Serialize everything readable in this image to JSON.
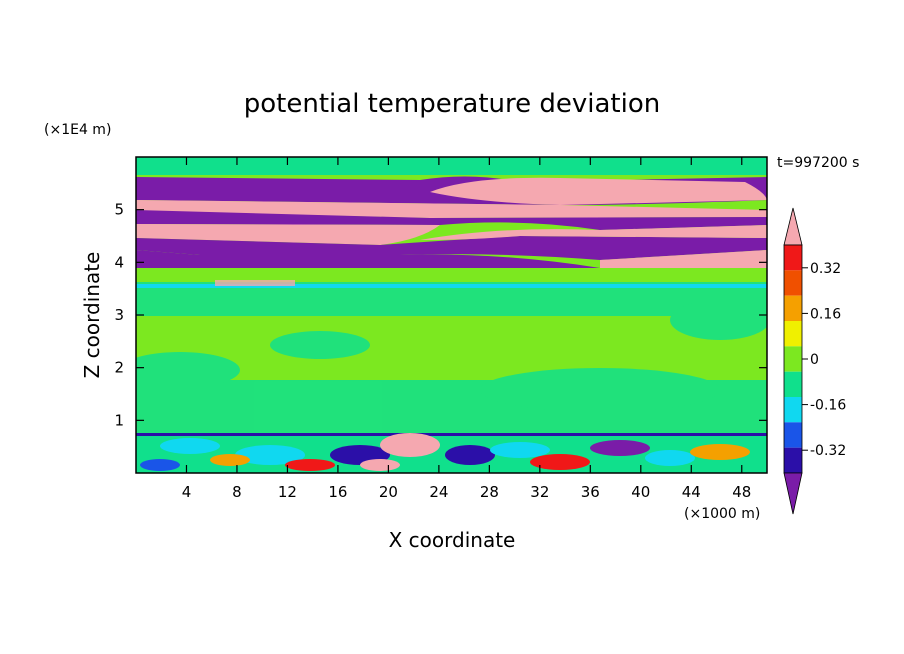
{
  "chart_data": {
    "type": "heatmap",
    "title": "potential temperature deviation",
    "xlabel": "X coordinate",
    "ylabel": "Z coordinate",
    "x_unit": "(×1000 m)",
    "y_unit": "(×1E4 m)",
    "time_label": "t=997200 s",
    "xlim": [
      0,
      50
    ],
    "ylim": [
      0,
      6
    ],
    "x_ticks": [
      4,
      8,
      12,
      16,
      20,
      24,
      28,
      32,
      36,
      40,
      44,
      48
    ],
    "y_ticks": [
      1,
      2,
      3,
      4,
      5
    ],
    "colorbar": {
      "levels": [
        -0.4,
        -0.32,
        -0.24,
        -0.16,
        -0.08,
        0,
        0.08,
        0.16,
        0.24,
        0.32,
        0.4
      ],
      "colors": [
        "#7a1ca8",
        "#2b0fa8",
        "#1a55e8",
        "#10d8f0",
        "#10e08c",
        "#7ce820",
        "#f0f000",
        "#f5a000",
        "#f05000",
        "#f01818",
        "#f5a8b0"
      ],
      "tick_labels": [
        "0.32",
        "0.16",
        "0",
        "-0.16",
        "-0.32"
      ],
      "tick_values": [
        0.32,
        0.16,
        0,
        -0.16,
        -0.32
      ],
      "extend": "both"
    },
    "bands": [
      {
        "z": [
          0.0,
          0.75
        ],
        "value": "mixed"
      },
      {
        "z": [
          0.75,
          3.5
        ],
        "value": 0.02
      },
      {
        "z": [
          3.5,
          3.7
        ],
        "value": -0.1
      },
      {
        "z": [
          3.9,
          4.3
        ],
        "value": -0.5
      },
      {
        "z": [
          4.3,
          4.7
        ],
        "value": 0.5
      },
      {
        "z": [
          4.7,
          5.05
        ],
        "value": -0.5
      },
      {
        "z": [
          5.05,
          5.2
        ],
        "value": 0.5
      },
      {
        "z": [
          5.2,
          5.55
        ],
        "value": -0.5
      },
      {
        "z": [
          5.55,
          6.0
        ],
        "value": 0.02
      }
    ]
  }
}
